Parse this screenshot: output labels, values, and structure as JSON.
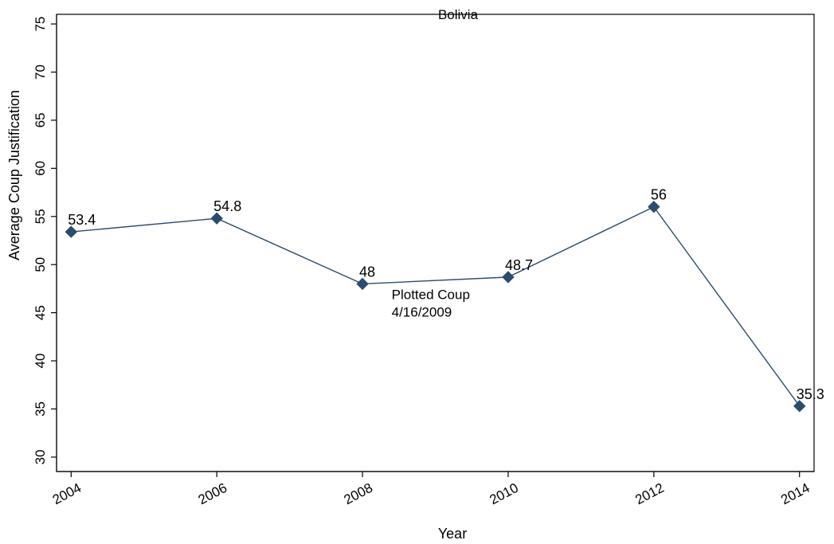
{
  "chart_data": {
    "type": "line",
    "title": "Bolivia",
    "xlabel": "Year",
    "ylabel": "Average Coup Justification",
    "x": [
      2004,
      2006,
      2008,
      2010,
      2012,
      2014
    ],
    "xticks": [
      "2004",
      "2006",
      "2008",
      "2010",
      "2012",
      "2014"
    ],
    "xlim": [
      2003.8,
      2014.2
    ],
    "ylim": [
      28.5,
      76
    ],
    "yticks": [
      30,
      35,
      40,
      45,
      50,
      55,
      60,
      65,
      70,
      75
    ],
    "series": [
      {
        "values": [
          53.4,
          54.8,
          48,
          48.7,
          56,
          35.3
        ],
        "labels": [
          "53.4",
          "54.8",
          "48",
          "48.7",
          "56",
          "35.3"
        ],
        "color": "#2b4c6f",
        "marker": "diamond"
      }
    ],
    "annotations": [
      {
        "x": 2008.4,
        "y": 46.4,
        "lines": [
          "Plotted Coup",
          "4/16/2009"
        ]
      }
    ],
    "grid": false,
    "legend": "none"
  }
}
